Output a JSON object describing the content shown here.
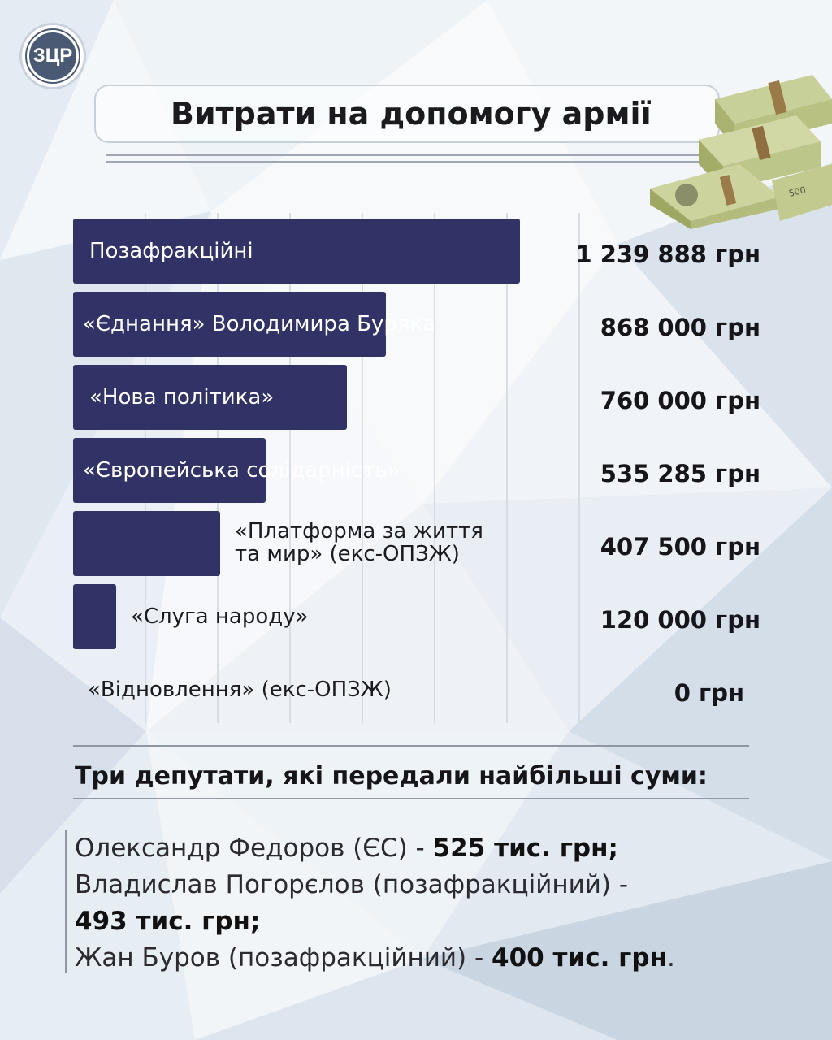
{
  "logo": {
    "text": "ЗЦР"
  },
  "title": "Витрати на допомогу армії",
  "colors": {
    "bar": "#313366",
    "background": "#eef3f7",
    "gridline": "#cfd5dc"
  },
  "chart_data": {
    "type": "bar",
    "orientation": "horizontal",
    "categories": [
      "Позафракційні",
      "«Єднання» Володимира Буряка",
      "«Нова політика»",
      "«Європейська солідарність»",
      "«Платформа за життя та мир» (екс-ОПЗЖ)",
      "«Слуга народу»",
      "«Відновлення» (екс-ОПЗЖ)"
    ],
    "label_lines": [
      [
        "Позафракційні"
      ],
      [
        "«Єднання» Володимира Буряка"
      ],
      [
        "«Нова політика»"
      ],
      [
        "«Європейська солідарність»"
      ],
      [
        "«Платформа за життя",
        "та мир» (екс-ОПЗЖ)"
      ],
      [
        "«Слуга народу»"
      ],
      [
        "«Відновлення» (екс-ОПЗЖ)"
      ]
    ],
    "values": [
      1239888,
      868000,
      760000,
      535285,
      407500,
      120000,
      0
    ],
    "value_labels": [
      "1 239 888 грн",
      "868 000 грн",
      "760 000 грн",
      "535 285 грн",
      "407 500 грн",
      "120 000 грн",
      "0 грн"
    ],
    "unit": "грн",
    "xlim": [
      0,
      1239888
    ],
    "grid": true,
    "legend": "none"
  },
  "section": {
    "title": "Три депутати, які передали найбільші суми:",
    "deputies": [
      {
        "text": "Олександр Федоров (ЄС) - ",
        "amount": "525 тис. грн;"
      },
      {
        "text": "Владислав Погорєлов (позафракційний) -",
        "amount": "493 тис. грн;"
      },
      {
        "text": "Жан Буров (позафракційний) - ",
        "amount": "400 тис. грн",
        "tail": "."
      }
    ]
  }
}
